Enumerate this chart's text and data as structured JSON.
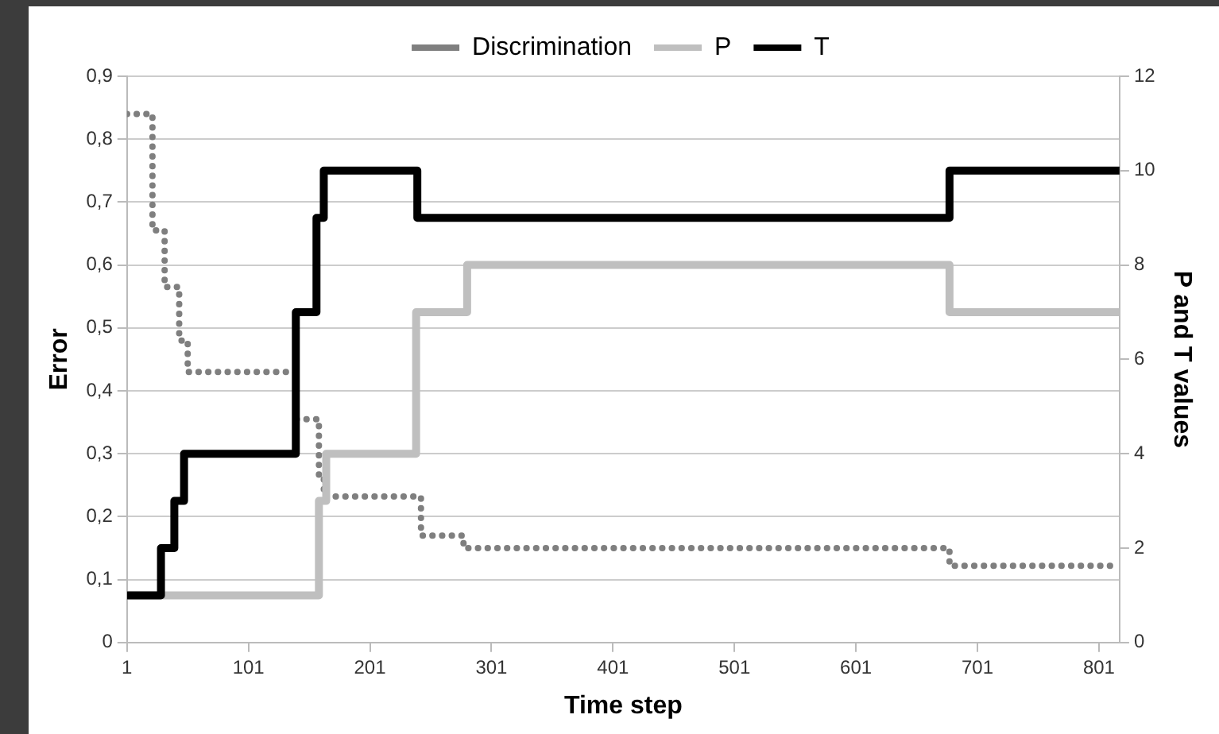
{
  "chart_data": {
    "type": "step",
    "xlabel": "Time step",
    "ylabel": "Error",
    "y2label": "P and T values",
    "xlim": [
      1,
      818
    ],
    "xticks": [
      1,
      101,
      201,
      301,
      401,
      501,
      601,
      701,
      801
    ],
    "ylim": [
      0,
      0.9
    ],
    "yticks": [
      0,
      {
        "value": 0.1,
        "label": "0,1"
      },
      {
        "value": 0.2,
        "label": "0,2"
      },
      {
        "value": 0.3,
        "label": "0,3"
      },
      {
        "value": 0.4,
        "label": "0,4"
      },
      {
        "value": 0.5,
        "label": "0,5"
      },
      {
        "value": 0.6,
        "label": "0,6"
      },
      {
        "value": 0.7,
        "label": "0,7"
      },
      {
        "value": 0.8,
        "label": "0,8"
      },
      {
        "value": 0.9,
        "label": "0,9"
      }
    ],
    "y2lim": [
      0,
      12
    ],
    "y2ticks": [
      0,
      2,
      4,
      6,
      8,
      10,
      12
    ],
    "grid": "y",
    "legend": "top",
    "marker": "none",
    "series": [
      {
        "name": "Discrimination",
        "color": "#7f7f7f",
        "line_style": "dotted",
        "x": [
          1,
          22,
          32,
          44,
          51,
          140,
          159,
          163,
          243,
          278,
          678,
          818
        ],
        "values": [
          0.84,
          0.655,
          0.565,
          0.48,
          0.43,
          0.355,
          0.26,
          0.232,
          0.17,
          0.15,
          0.122,
          0.122
        ]
      },
      {
        "name": "P",
        "color": "#bfbfbf",
        "line_style": "solid",
        "axis": "y2",
        "x": [
          1,
          159,
          165,
          239,
          281,
          678,
          818
        ],
        "values": [
          1,
          3,
          4,
          7,
          8,
          7,
          7
        ]
      },
      {
        "name": "T",
        "color": "#000000",
        "line_style": "solid",
        "axis": "y2",
        "x": [
          1,
          29,
          40,
          48,
          140,
          157,
          163,
          240,
          678,
          818
        ],
        "values": [
          1,
          2,
          3,
          4,
          7,
          9,
          10,
          9,
          10,
          10
        ]
      }
    ]
  }
}
